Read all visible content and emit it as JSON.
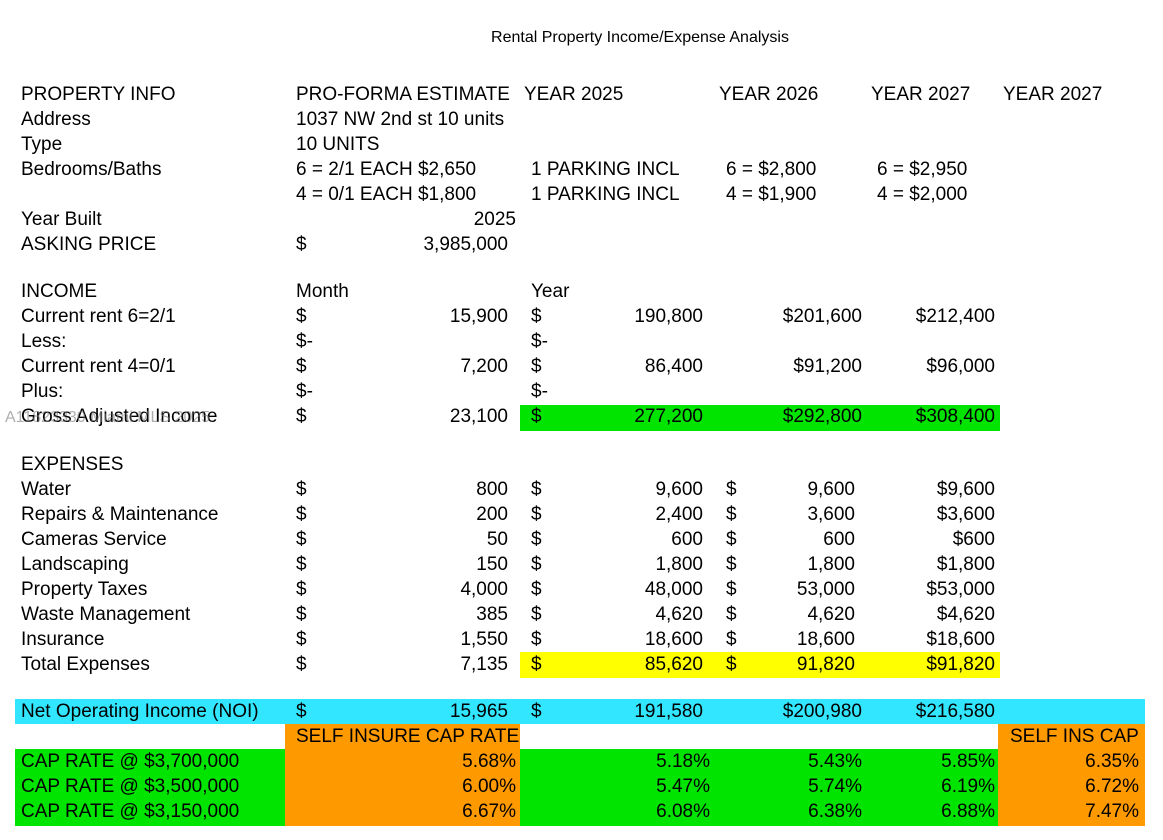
{
  "title": "Rental Property Income/Expense Analysis",
  "watermark": "A11823330 Miami MLS 2025",
  "rows": [
    {
      "label": "PROPERTY INFO",
      "c1": "PRO-FORMA ESTIMATE",
      "h2": "YEAR 2025",
      "h3": "YEAR 2026",
      "h4": "YEAR 2027",
      "h5": "YEAR 2027"
    },
    {
      "label": "Address",
      "c1": "1037 NW 2nd st 10 units"
    },
    {
      "label": "Type",
      "c1": "10 UNITS"
    },
    {
      "label": "Bedrooms/Baths",
      "c1": "6 = 2/1 EACH $2,650",
      "c2": "1 PARKING INCL",
      "c3": "6 = $2,800",
      "c4": "6 = $2,950"
    },
    {
      "c1": "4 = 0/1 EACH $1,800",
      "c2": "1 PARKING INCL",
      "c3": "4 = $1,900",
      "c4": "4 = $2,000"
    },
    {
      "label": "Year Built",
      "mp": "2025"
    },
    {
      "label": "ASKING PRICE",
      "c1": "$",
      "m": "3,985,000"
    },
    {
      "label": "INCOME",
      "c1": "Month",
      "c2": "Year"
    },
    {
      "label": "Current rent 6=2/1",
      "c1": "$",
      "m": "15,900",
      "c2": "$",
      "yv": "190,800",
      "v3b": "$201,600",
      "v4": "$212,400"
    },
    {
      "label": "Less:",
      "c1": "$-",
      "c2": "$-"
    },
    {
      "label": "Current rent 4=0/1",
      "c1": "$",
      "m": "7,200",
      "c2": "$",
      "yv": "86,400",
      "v3b": "$91,200",
      "v4": "$96,000"
    },
    {
      "label": "Plus:",
      "c1": "$-",
      "c2": "$-"
    },
    {
      "label": "Gross Adjusted Income",
      "c1": "$",
      "m": "23,100",
      "c2": "$",
      "yv": "277,200",
      "v3b": "$292,800",
      "v4": "$308,400"
    },
    {
      "label": "EXPENSES"
    },
    {
      "label": "Water",
      "c1": "$",
      "m": "800",
      "c2": "$",
      "yv": "9,600",
      "c3": "$",
      "v3": "9,600",
      "v4": "$9,600"
    },
    {
      "label": "Repairs & Maintenance",
      "c1": "$",
      "m": "200",
      "c2": "$",
      "yv": "2,400",
      "c3": "$",
      "v3": "3,600",
      "v4": "$3,600"
    },
    {
      "label": "Cameras Service",
      "c1": "$",
      "m": "50",
      "c2": "$",
      "yv": "600",
      "c3": "$",
      "v3": "600",
      "v4": "$600"
    },
    {
      "label": "Landscaping",
      "c1": "$",
      "m": "150",
      "c2": "$",
      "yv": "1,800",
      "c3": "$",
      "v3": "1,800",
      "v4": "$1,800"
    },
    {
      "label": "Property Taxes",
      "c1": "$",
      "m": "4,000",
      "c2": "$",
      "yv": "48,000",
      "c3": "$",
      "v3": "53,000",
      "v4": "$53,000"
    },
    {
      "label": "Waste Management",
      "c1": "$",
      "m": "385",
      "c2": "$",
      "yv": "4,620",
      "c3": "$",
      "v3": "4,620",
      "v4": "$4,620"
    },
    {
      "label": "Insurance",
      "c1": "$",
      "m": "1,550",
      "c2": "$",
      "yv": "18,600",
      "c3": "$",
      "v3": "18,600",
      "v4": "$18,600"
    },
    {
      "label": "Total Expenses",
      "c1": "$",
      "m": "7,135",
      "c2": "$",
      "yv": "85,620",
      "c3": "$",
      "v3": "91,820",
      "v4": "$91,820"
    },
    {
      "label": "Net Operating Income (NOI)",
      "c1": "$",
      "m": "15,965",
      "c2": "$",
      "yv": "191,580",
      "v3b": "$200,980",
      "v4": "$216,580"
    },
    {
      "c1": "SELF INSURE CAP RATE",
      "c5": "SELF INS CAP"
    },
    {
      "label": "CAP RATE @ $3,700,000",
      "mp": "5.68%",
      "yp": "5.18%",
      "v3b": "5.43%",
      "v4": "5.85%",
      "v5": "6.35%"
    },
    {
      "label": "CAP RATE @ $3,500,000",
      "mp": "6.00%",
      "yp": "5.47%",
      "v3b": "5.74%",
      "v4": "6.19%",
      "v5": "6.72%"
    },
    {
      "label": "CAP RATE @ $3,150,000",
      "mp": "6.67%",
      "yp": "6.08%",
      "v3b": "6.38%",
      "v4": "6.88%",
      "v5": "7.47%"
    }
  ]
}
